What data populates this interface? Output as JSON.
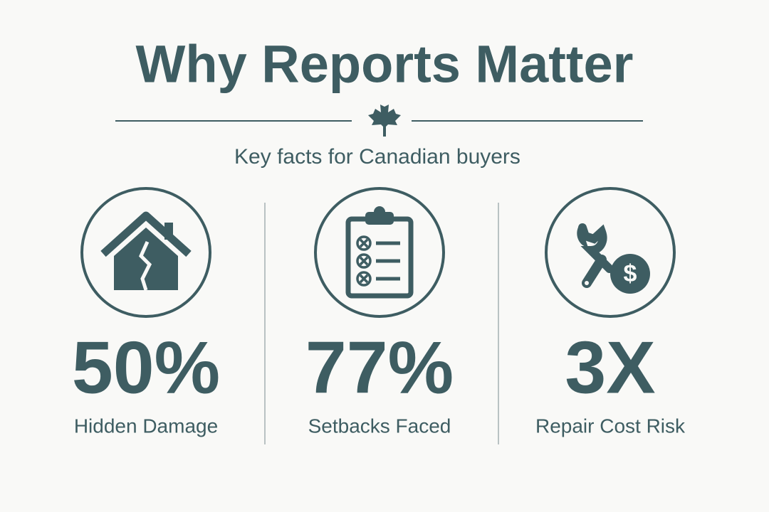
{
  "header": {
    "title": "Why Reports Matter",
    "subtitle": "Key facts for Canadian buyers"
  },
  "stats": [
    {
      "value": "50%",
      "label": "Hidden Damage"
    },
    {
      "value": "77%",
      "label": "Setbacks Faced"
    },
    {
      "value": "3X",
      "label": "Repair Cost Risk"
    }
  ]
}
